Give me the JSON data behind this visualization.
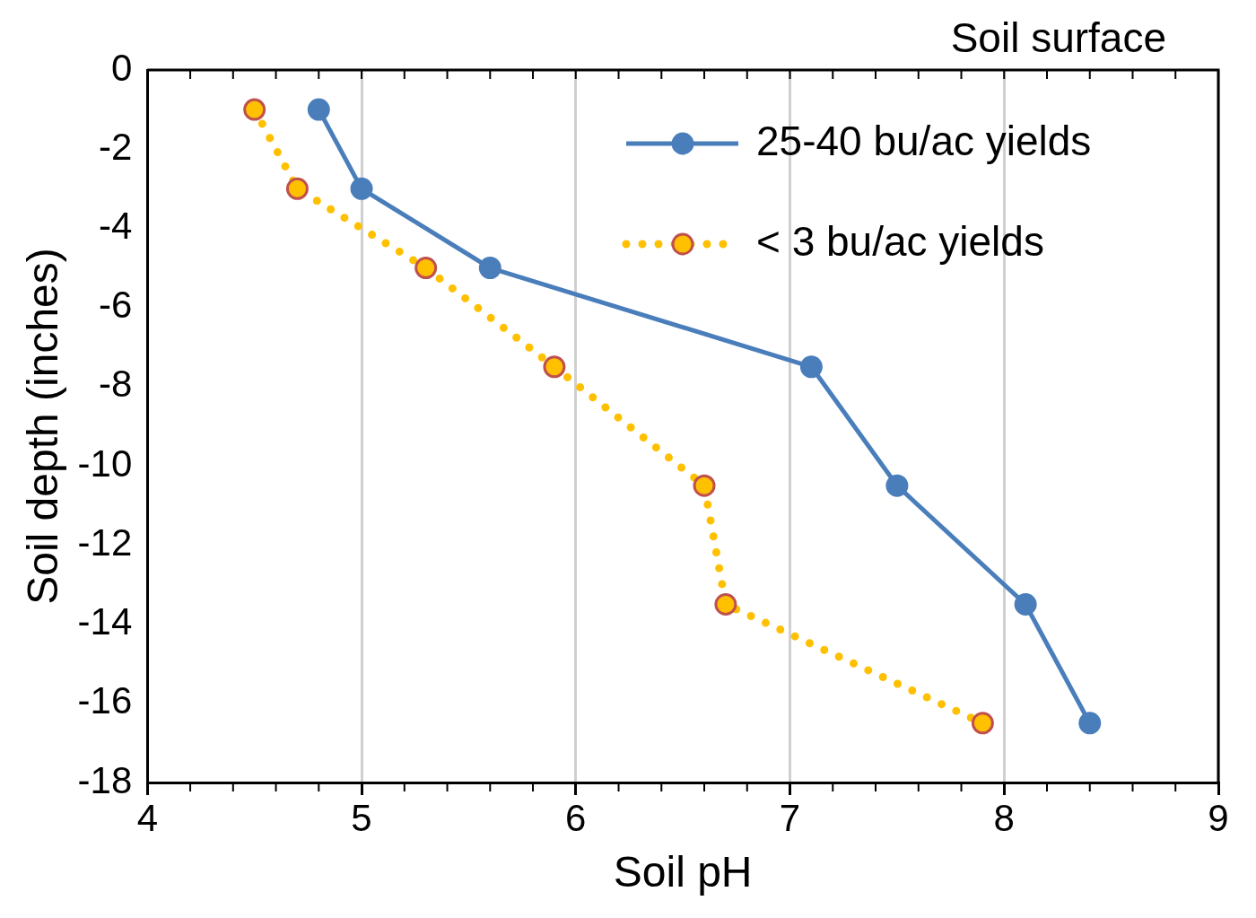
{
  "chart_data": {
    "type": "line",
    "xlabel": "Soil pH",
    "ylabel": "Soil depth (inches)",
    "annotations": [
      "Soil surface"
    ],
    "xlim": [
      4,
      9
    ],
    "xticks": [
      4,
      5,
      6,
      7,
      8,
      9
    ],
    "ylim": [
      -18,
      0
    ],
    "yticks": [
      -18,
      -16,
      -14,
      -12,
      -10,
      -8,
      -6,
      -4,
      -2,
      0
    ],
    "grid": "x",
    "legend": "top right",
    "marker": "circle",
    "series": [
      {
        "name": "25-40 bu/ac yields",
        "color": "#4a7ebb",
        "line_style": "solid",
        "x": [
          4.8,
          5.0,
          5.6,
          7.1,
          7.5,
          8.1,
          8.4
        ],
        "values": [
          -1,
          -3,
          -5,
          -7.5,
          -10.5,
          -13.5,
          -16.5
        ]
      },
      {
        "name": "< 3 bu/ac yields",
        "color": "#ffc000",
        "line_style": "dotted",
        "x": [
          4.5,
          4.7,
          5.3,
          5.9,
          6.6,
          6.7,
          7.9
        ],
        "values": [
          -1,
          -3,
          -5,
          -7.5,
          -10.5,
          -13.5,
          -16.5
        ]
      }
    ]
  }
}
